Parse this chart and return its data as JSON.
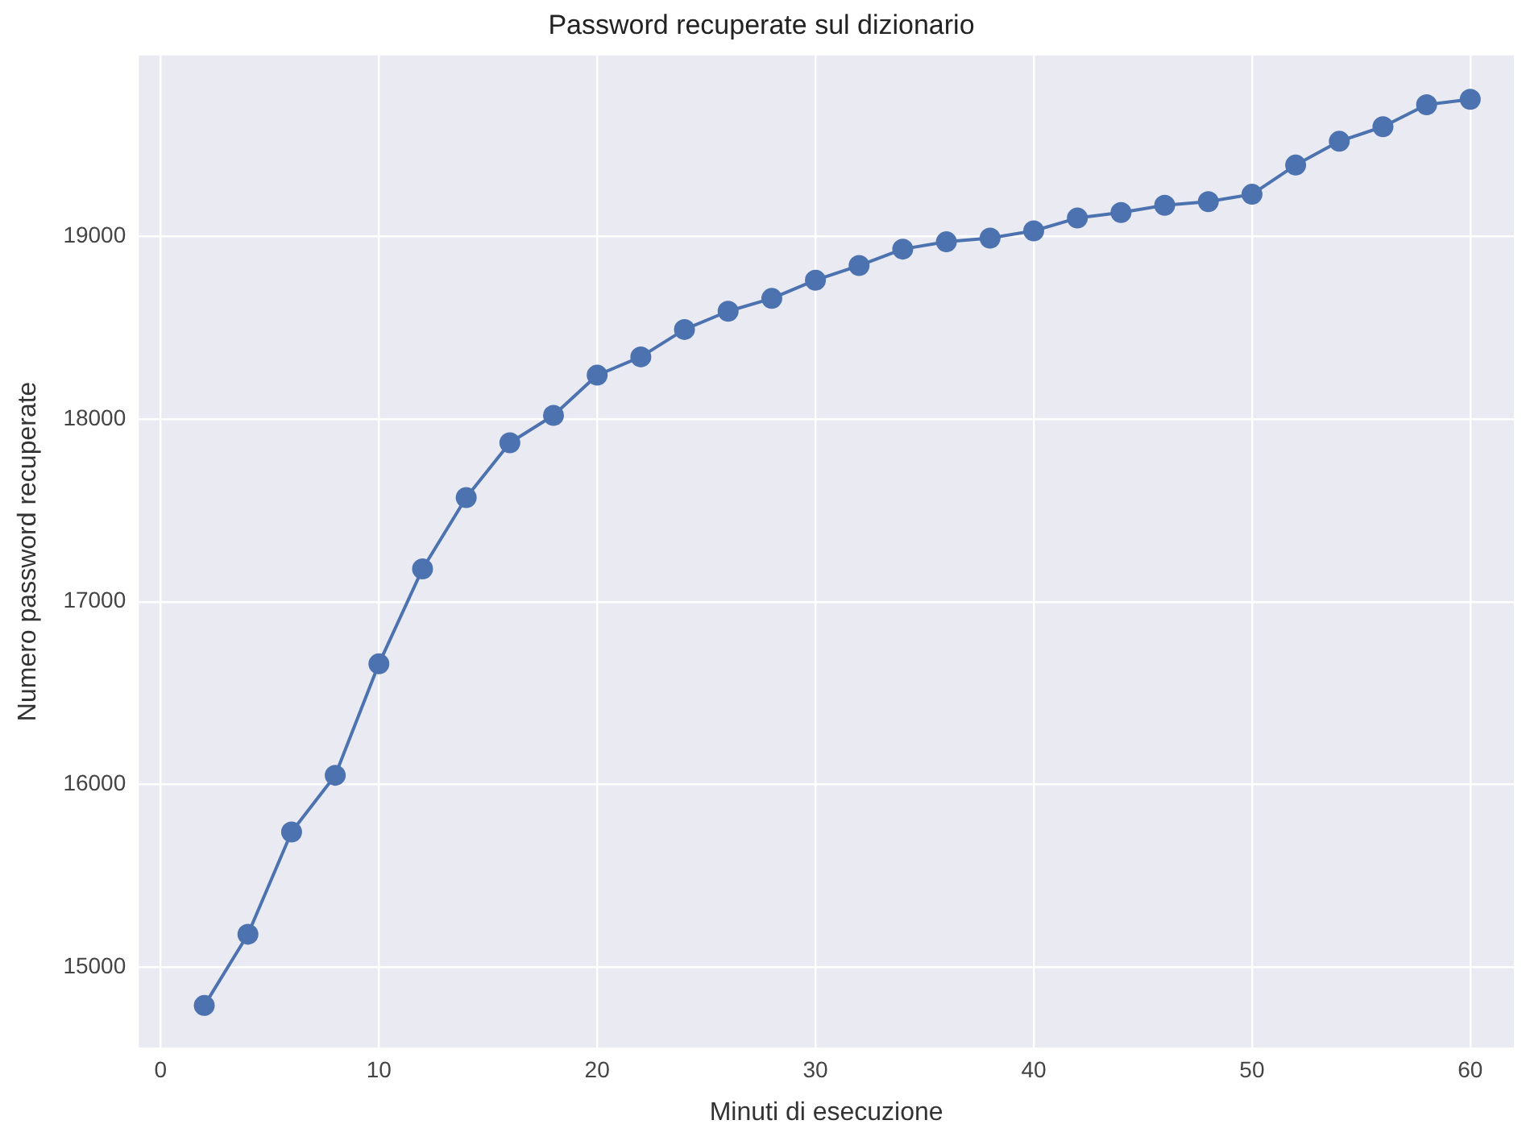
{
  "chart_data": {
    "type": "line",
    "title": "Password recuperate sul dizionario",
    "xlabel": "Minuti di esecuzione",
    "ylabel": "Numero password recuperate",
    "series": [
      {
        "color": "#4c72b0",
        "x": [
          2,
          4,
          6,
          8,
          10,
          12,
          14,
          16,
          18,
          20,
          22,
          24,
          26,
          28,
          30,
          32,
          34,
          36,
          38,
          40,
          42,
          44,
          46,
          48,
          50,
          52,
          54,
          56,
          58,
          60
        ],
        "values": [
          14790,
          15180,
          15740,
          16050,
          16660,
          17180,
          17570,
          17870,
          18020,
          18240,
          18340,
          18490,
          18590,
          18660,
          18760,
          18840,
          18930,
          18970,
          18990,
          19030,
          19100,
          19130,
          19170,
          19190,
          19230,
          19390,
          19520,
          19600,
          19720,
          19750
        ]
      }
    ],
    "xlim": [
      -1,
      62
    ],
    "xticks": [
      0,
      10,
      20,
      30,
      40,
      50,
      60
    ],
    "ylim": [
      14560,
      19990
    ],
    "yticks": [
      15000,
      16000,
      17000,
      18000,
      19000
    ],
    "grid": true,
    "legend": false,
    "marker": "circle",
    "line_style": "solid"
  }
}
